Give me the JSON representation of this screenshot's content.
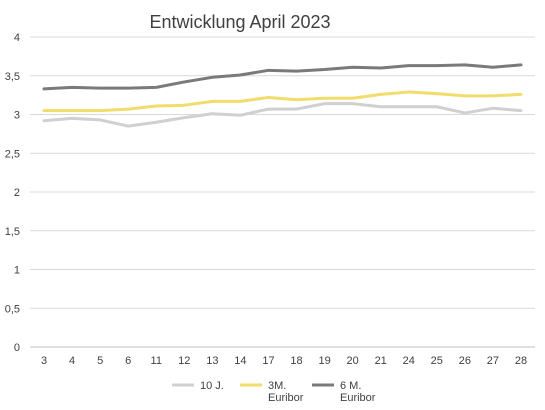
{
  "chart_data": {
    "type": "line",
    "title": "Entwicklung April 2023",
    "categories": [
      "3",
      "4",
      "5",
      "6",
      "11",
      "12",
      "13",
      "14",
      "17",
      "18",
      "19",
      "20",
      "21",
      "24",
      "25",
      "26",
      "27",
      "28"
    ],
    "ylim": [
      0,
      4
    ],
    "yticks": [
      "0",
      "0,5",
      "1",
      "1,5",
      "2",
      "2,5",
      "3",
      "3,5",
      "4"
    ],
    "ytick_values": [
      0,
      0.5,
      1,
      1.5,
      2,
      2.5,
      3,
      3.5,
      4
    ],
    "grid": "horizontal",
    "legend_position": "bottom",
    "series": [
      {
        "name": "10 J.",
        "color": "#d0d0d0",
        "values": [
          2.92,
          2.95,
          2.93,
          2.85,
          2.9,
          2.96,
          3.01,
          2.99,
          3.07,
          3.07,
          3.14,
          3.14,
          3.1,
          3.1,
          3.1,
          3.02,
          3.08,
          3.05
        ]
      },
      {
        "name": "3M. Euribor",
        "legend_lines": [
          "3M.",
          "Euribor"
        ],
        "color": "#f2dc6b",
        "values": [
          3.05,
          3.05,
          3.05,
          3.07,
          3.11,
          3.12,
          3.17,
          3.17,
          3.22,
          3.19,
          3.21,
          3.21,
          3.26,
          3.29,
          3.27,
          3.24,
          3.24,
          3.26
        ]
      },
      {
        "name": "6 M. Euribor",
        "legend_lines": [
          "6 M.",
          "Euribor"
        ],
        "color": "#7a7a7a",
        "values": [
          3.33,
          3.35,
          3.34,
          3.34,
          3.35,
          3.42,
          3.48,
          3.51,
          3.57,
          3.56,
          3.58,
          3.61,
          3.6,
          3.63,
          3.63,
          3.64,
          3.61,
          3.64
        ]
      }
    ]
  }
}
